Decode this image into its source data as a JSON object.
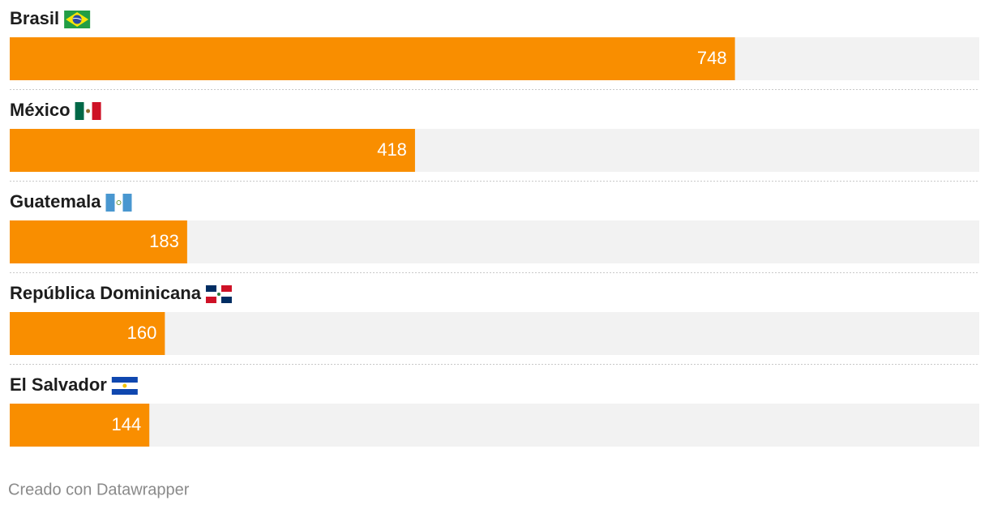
{
  "chart_data": {
    "type": "bar",
    "orientation": "horizontal",
    "categories": [
      "Brasil",
      "México",
      "Guatemala",
      "República Dominicana",
      "El Salvador"
    ],
    "values": [
      748,
      418,
      183,
      160,
      144
    ],
    "color": "#f98e00",
    "xlim": [
      0,
      1000
    ],
    "credit": "Creado con Datawrapper"
  }
}
